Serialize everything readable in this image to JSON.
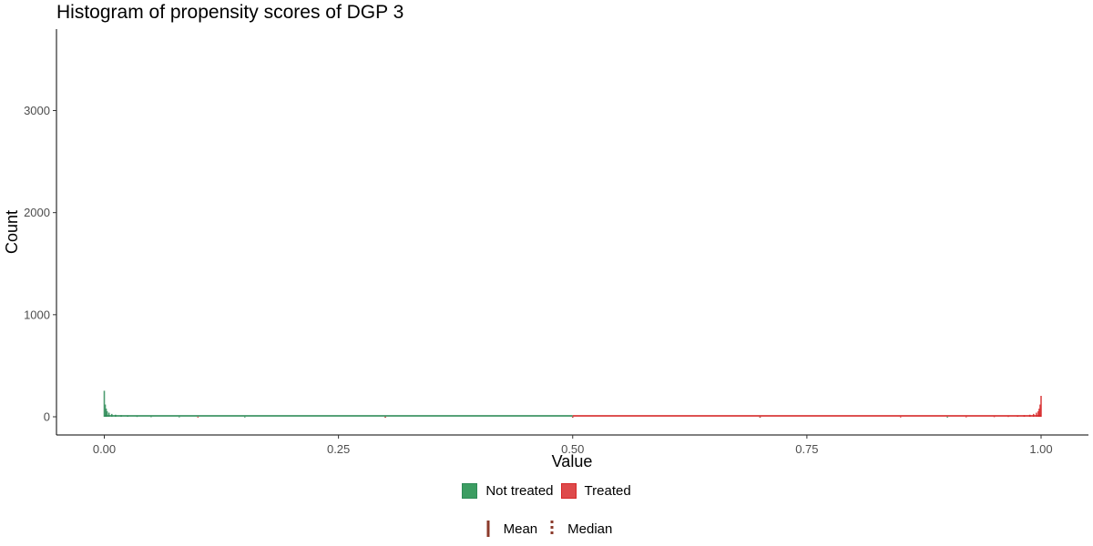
{
  "chart_data": {
    "type": "histogram",
    "title": "Histogram of propensity scores of DGP 3",
    "xlabel": "Value",
    "ylabel": "Count",
    "xlim": [
      -0.05,
      1.05
    ],
    "ylim": [
      -150,
      3800
    ],
    "x_ticks": [
      0.0,
      0.25,
      0.5,
      0.75,
      1.0
    ],
    "x_tick_labels": [
      "0.00",
      "0.25",
      "0.50",
      "0.75",
      "1.00"
    ],
    "y_ticks": [
      0,
      1000,
      2000,
      3000
    ],
    "y_tick_labels": [
      "0",
      "1000",
      "2000",
      "3000"
    ],
    "grid": false,
    "legend_position": "bottom",
    "series": [
      {
        "name": "Not treated",
        "color": "#2e8b57",
        "bins": [
          {
            "x": 0.0,
            "count": 255
          },
          {
            "x": 0.001,
            "count": 120
          },
          {
            "x": 0.002,
            "count": 80
          },
          {
            "x": 0.003,
            "count": 55
          },
          {
            "x": 0.005,
            "count": 40
          },
          {
            "x": 0.008,
            "count": 28
          },
          {
            "x": 0.012,
            "count": 20
          },
          {
            "x": 0.018,
            "count": 14
          },
          {
            "x": 0.025,
            "count": 10
          },
          {
            "x": 0.035,
            "count": 7
          },
          {
            "x": 0.05,
            "count": 5
          },
          {
            "x": 0.08,
            "count": 3
          },
          {
            "x": 0.15,
            "count": 2
          },
          {
            "x": 0.3,
            "count": 1
          },
          {
            "x": 0.5,
            "count": 1
          },
          {
            "x": 0.7,
            "count": 1
          },
          {
            "x": 0.9,
            "count": 1
          }
        ]
      },
      {
        "name": "Treated",
        "color": "#d62728",
        "bins": [
          {
            "x": 0.1,
            "count": 1
          },
          {
            "x": 0.3,
            "count": 1
          },
          {
            "x": 0.5,
            "count": 1
          },
          {
            "x": 0.7,
            "count": 1
          },
          {
            "x": 0.85,
            "count": 2
          },
          {
            "x": 0.92,
            "count": 3
          },
          {
            "x": 0.95,
            "count": 5
          },
          {
            "x": 0.965,
            "count": 7
          },
          {
            "x": 0.975,
            "count": 10
          },
          {
            "x": 0.982,
            "count": 14
          },
          {
            "x": 0.988,
            "count": 20
          },
          {
            "x": 0.992,
            "count": 28
          },
          {
            "x": 0.995,
            "count": 40
          },
          {
            "x": 0.997,
            "count": 55
          },
          {
            "x": 0.998,
            "count": 80
          },
          {
            "x": 0.999,
            "count": 120
          },
          {
            "x": 1.0,
            "count": 205
          }
        ]
      }
    ],
    "reference_lines": [
      {
        "name": "Mean",
        "style": "solid",
        "color": "#8b3a2b"
      },
      {
        "name": "Median",
        "style": "dotted",
        "color": "#8b3a2b"
      }
    ]
  }
}
